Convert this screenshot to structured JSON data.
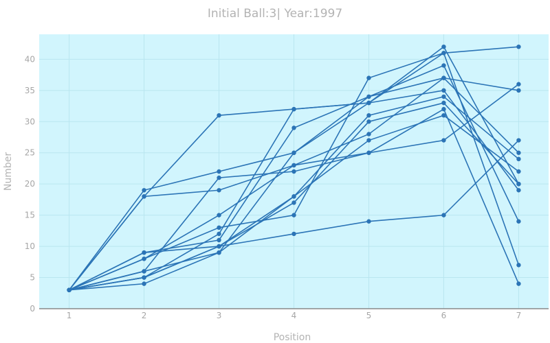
{
  "chart_data": {
    "type": "line",
    "title": "Initial Ball:3| Year:1997",
    "xlabel": "Position",
    "ylabel": "Number",
    "x": [
      1,
      2,
      3,
      4,
      5,
      6,
      7
    ],
    "xlim": [
      0.6,
      7.4
    ],
    "ylim": [
      0,
      44
    ],
    "x_ticks": [
      1,
      2,
      3,
      4,
      5,
      6,
      7
    ],
    "y_ticks": [
      0,
      5,
      10,
      15,
      20,
      25,
      30,
      35,
      40
    ],
    "grid": true,
    "legend": "none",
    "colors": {
      "plot_background": "#d1f5fd",
      "line": "#2b74b6",
      "grid": "#b9e6f0"
    },
    "series": [
      {
        "values": [
          3,
          18,
          31,
          32,
          33,
          35,
          19
        ]
      },
      {
        "values": [
          3,
          19,
          22,
          25,
          34,
          37,
          35
        ]
      },
      {
        "values": [
          3,
          18,
          19,
          23,
          25,
          27,
          36
        ]
      },
      {
        "values": [
          3,
          9,
          10,
          12,
          14,
          15,
          27
        ]
      },
      {
        "values": [
          3,
          8,
          13,
          15,
          37,
          41,
          42
        ]
      },
      {
        "values": [
          3,
          4,
          9,
          18,
          27,
          31,
          22
        ]
      },
      {
        "values": [
          3,
          5,
          12,
          32,
          33,
          41,
          7
        ]
      },
      {
        "values": [
          3,
          6,
          21,
          22,
          25,
          32,
          4
        ]
      },
      {
        "values": [
          3,
          9,
          11,
          29,
          34,
          39,
          14
        ]
      },
      {
        "values": [
          3,
          5,
          10,
          17,
          30,
          33,
          20
        ]
      },
      {
        "values": [
          3,
          8,
          15,
          23,
          28,
          37,
          25
        ]
      },
      {
        "values": [
          3,
          5,
          10,
          18,
          31,
          34,
          24
        ]
      },
      {
        "values": [
          3,
          6,
          9,
          25,
          33,
          42,
          20
        ]
      }
    ]
  }
}
